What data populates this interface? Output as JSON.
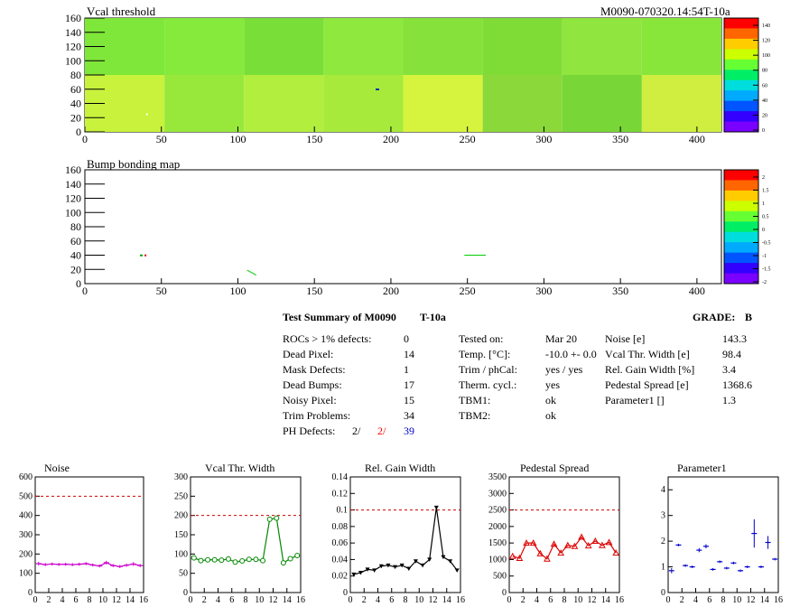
{
  "module_id": "M0090-070320.14:54T-10a",
  "maps": [
    {
      "title": "Vcal threshold",
      "x_ticks": [
        "0",
        "50",
        "100",
        "150",
        "200",
        "250",
        "300",
        "350",
        "400"
      ],
      "y_ticks": [
        "0",
        "20",
        "40",
        "60",
        "80",
        "100",
        "120",
        "140",
        "160"
      ],
      "palette_labels": [
        "0",
        "20",
        "40",
        "60",
        "80",
        "100",
        "120",
        "140"
      ]
    },
    {
      "title": "Bump bonding map",
      "x_ticks": [
        "0",
        "50",
        "100",
        "150",
        "200",
        "250",
        "300",
        "350",
        "400"
      ],
      "y_ticks": [
        "0",
        "20",
        "40",
        "60",
        "80",
        "100",
        "120",
        "140",
        "160"
      ],
      "palette_labels": [
        "-2",
        "-1.5",
        "-1",
        "-0.5",
        "0",
        "0.5",
        "1",
        "1.5",
        "2"
      ]
    }
  ],
  "summary": {
    "title": "Test Summary of M0090",
    "test_id": "T-10a",
    "grade_label": "GRADE:",
    "grade": "B",
    "col1": [
      {
        "label": "ROCs > 1% defects:",
        "value": "0"
      },
      {
        "label": "Dead Pixel:",
        "value": "14"
      },
      {
        "label": "Mask Defects:",
        "value": "1"
      },
      {
        "label": "Dead Bumps:",
        "value": "17"
      },
      {
        "label": "Noisy Pixel:",
        "value": "15"
      },
      {
        "label": "Trim Problems:",
        "value": "34"
      }
    ],
    "ph_defects": {
      "label": "PH Defects:",
      "a": "2/",
      "b": "2/",
      "c": "39",
      "color_a": "#000000",
      "color_b": "#ff0000",
      "color_c": "#0000cc"
    },
    "col2": [
      {
        "label": "Tested on:",
        "value": "Mar 20"
      },
      {
        "label": "Temp. [°C]:",
        "value": "-10.0 +- 0.0"
      },
      {
        "label": "Trim / phCal:",
        "value": "yes / yes"
      },
      {
        "label": "Therm. cycl.:",
        "value": "yes"
      },
      {
        "label": "TBM1:",
        "value": "ok"
      },
      {
        "label": "TBM2:",
        "value": "ok"
      }
    ],
    "col3": [
      {
        "label": "Noise [e]",
        "value": "143.3"
      },
      {
        "label": "Vcal Thr. Width [e]",
        "value": "98.4"
      },
      {
        "label": "Rel. Gain Width [%]",
        "value": "3.4"
      },
      {
        "label": "Pedestal Spread [e]",
        "value": "1368.6"
      },
      {
        "label": "Parameter1 []",
        "value": "1.3"
      }
    ]
  },
  "chart_data": [
    {
      "type": "line",
      "title": "Noise",
      "color": "#cc00cc",
      "marker": "cross",
      "x": [
        0,
        1,
        2,
        3,
        4,
        5,
        6,
        7,
        8,
        9,
        10,
        11,
        12,
        13,
        14,
        15
      ],
      "values": [
        150,
        145,
        148,
        146,
        147,
        145,
        147,
        150,
        143,
        138,
        155,
        140,
        135,
        142,
        148,
        140
      ],
      "errors": [
        10,
        8,
        8,
        8,
        8,
        8,
        8,
        8,
        8,
        8,
        10,
        8,
        8,
        8,
        10,
        8
      ],
      "ylim": [
        0,
        600
      ],
      "y_ticks": [
        0,
        100,
        200,
        300,
        400,
        500,
        600
      ],
      "ref_line": 500,
      "x_ticks": [
        0,
        2,
        4,
        6,
        8,
        10,
        12,
        14,
        16
      ]
    },
    {
      "type": "line",
      "title": "Vcal Thr. Width",
      "color": "#008800",
      "marker": "circle",
      "x": [
        0,
        1,
        2,
        3,
        4,
        5,
        6,
        7,
        8,
        9,
        10,
        11,
        12,
        13,
        14,
        15
      ],
      "values": [
        90,
        83,
        85,
        85,
        84,
        87,
        79,
        82,
        86,
        86,
        83,
        190,
        193,
        77,
        88,
        96
      ],
      "ylim": [
        0,
        300
      ],
      "y_ticks": [
        0,
        50,
        100,
        150,
        200,
        250,
        300
      ],
      "ref_line": 200,
      "x_ticks": [
        0,
        2,
        4,
        6,
        8,
        10,
        12,
        14,
        16
      ]
    },
    {
      "type": "line",
      "title": "Rel. Gain Width",
      "color": "#000000",
      "marker": "triangle-down",
      "x": [
        0,
        1,
        2,
        3,
        4,
        5,
        6,
        7,
        8,
        9,
        10,
        11,
        12,
        13,
        14,
        15
      ],
      "values": [
        0.022,
        0.024,
        0.028,
        0.027,
        0.032,
        0.033,
        0.031,
        0.033,
        0.029,
        0.038,
        0.033,
        0.04,
        0.103,
        0.043,
        0.038,
        0.027
      ],
      "ylim": [
        0,
        0.14
      ],
      "y_ticks": [
        0,
        0.02,
        0.04,
        0.06,
        0.08,
        0.1,
        0.12,
        0.14
      ],
      "ref_line": 0.1,
      "x_ticks": [
        0,
        2,
        4,
        6,
        8,
        10,
        12,
        14,
        16
      ]
    },
    {
      "type": "line",
      "title": "Pedestal Spread",
      "color": "#dd0000",
      "marker": "triangle-up",
      "x": [
        0,
        1,
        2,
        3,
        4,
        5,
        6,
        7,
        8,
        9,
        10,
        11,
        12,
        13,
        14,
        15
      ],
      "values": [
        1100,
        1040,
        1500,
        1500,
        1180,
        1020,
        1470,
        1200,
        1430,
        1400,
        1680,
        1420,
        1560,
        1430,
        1520,
        1200
      ],
      "ylim": [
        0,
        3500
      ],
      "y_ticks": [
        0,
        500,
        1000,
        1500,
        2000,
        2500,
        3000,
        3500
      ],
      "ref_line": 2500,
      "x_ticks": [
        0,
        2,
        4,
        6,
        8,
        10,
        12,
        14,
        16
      ]
    },
    {
      "type": "scatter",
      "title": "Parameter1",
      "color": "#0000cc",
      "marker": "errorbar",
      "x": [
        0,
        1,
        2,
        3,
        4,
        5,
        6,
        7,
        8,
        9,
        10,
        11,
        12,
        13,
        14,
        15
      ],
      "values": [
        0.85,
        1.85,
        1.05,
        1.0,
        1.65,
        1.8,
        0.9,
        1.2,
        0.95,
        1.15,
        0.85,
        1.0,
        2.3,
        1.0,
        1.95,
        1.3
      ],
      "errors": [
        0.1,
        0.05,
        0.05,
        0.05,
        0.08,
        0.08,
        0.05,
        0.05,
        0.05,
        0.05,
        0.05,
        0.05,
        0.55,
        0.05,
        0.25,
        0.05
      ],
      "ylim": [
        0,
        4.5
      ],
      "y_ticks": [
        0,
        1,
        2,
        3,
        4
      ],
      "ref_line": null,
      "x_ticks": [
        0,
        2,
        4,
        6,
        8,
        10,
        12,
        14,
        16
      ]
    }
  ]
}
